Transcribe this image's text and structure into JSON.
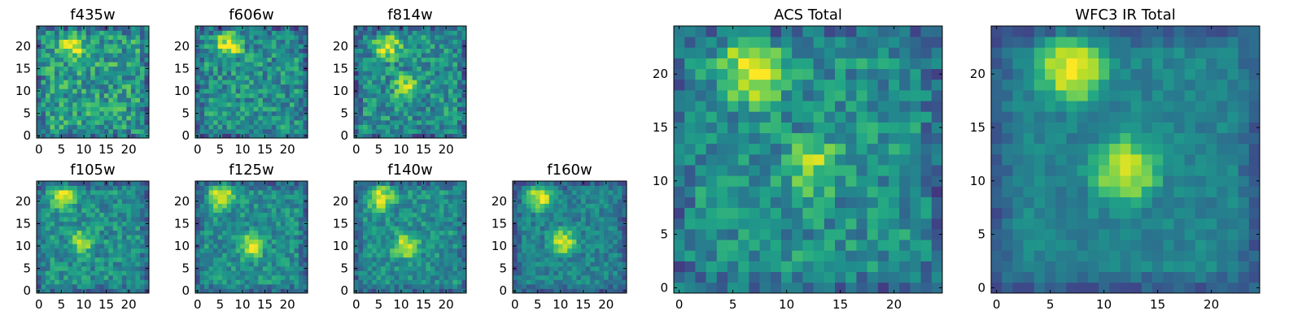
{
  "chart_data": [
    {
      "type": "heatmap",
      "title": "f435w",
      "xticks": [
        "0",
        "5",
        "10",
        "15",
        "20"
      ],
      "yticks": [
        "0",
        "5",
        "10",
        "15",
        "20"
      ],
      "xlim": [
        0,
        24
      ],
      "ylim": [
        0,
        24
      ],
      "colormap": "viridis",
      "grid": false,
      "blobs": [
        {
          "x": 7.5,
          "y": 20,
          "level": 0.95
        },
        {
          "x": 12,
          "y": 11,
          "level": 0.55
        }
      ],
      "background_level": 0.55,
      "noise": 0.22
    },
    {
      "type": "heatmap",
      "title": "f606w",
      "xticks": [
        "0",
        "5",
        "10",
        "15",
        "20"
      ],
      "yticks": [
        "0",
        "5",
        "10",
        "15",
        "20"
      ],
      "xlim": [
        0,
        24
      ],
      "ylim": [
        0,
        24
      ],
      "colormap": "viridis",
      "grid": false,
      "blobs": [
        {
          "x": 7,
          "y": 20.5,
          "level": 0.97
        },
        {
          "x": 12,
          "y": 11,
          "level": 0.55
        }
      ],
      "background_level": 0.5,
      "noise": 0.2
    },
    {
      "type": "heatmap",
      "title": "f814w",
      "xticks": [
        "0",
        "5",
        "10",
        "15",
        "20"
      ],
      "yticks": [
        "0",
        "5",
        "10",
        "15",
        "20"
      ],
      "xlim": [
        0,
        24
      ],
      "ylim": [
        0,
        24
      ],
      "colormap": "viridis",
      "grid": false,
      "blobs": [
        {
          "x": 7,
          "y": 20,
          "level": 0.95
        },
        {
          "x": 11,
          "y": 11,
          "level": 0.85
        }
      ],
      "background_level": 0.5,
      "noise": 0.2
    },
    {
      "type": "heatmap",
      "title": "f105w",
      "xticks": [
        "0",
        "5",
        "10",
        "15",
        "20"
      ],
      "yticks": [
        "0",
        "5",
        "10",
        "15",
        "20"
      ],
      "xlim": [
        0,
        24
      ],
      "ylim": [
        0,
        24
      ],
      "colormap": "viridis",
      "grid": false,
      "blobs": [
        {
          "x": 5.5,
          "y": 21,
          "level": 0.95
        },
        {
          "x": 9.5,
          "y": 11,
          "level": 0.85
        }
      ],
      "background_level": 0.5,
      "noise": 0.16
    },
    {
      "type": "heatmap",
      "title": "f125w",
      "xticks": [
        "0",
        "5",
        "10",
        "15",
        "20"
      ],
      "yticks": [
        "0",
        "5",
        "10",
        "15",
        "20"
      ],
      "xlim": [
        0,
        24
      ],
      "ylim": [
        0,
        24
      ],
      "colormap": "viridis",
      "grid": false,
      "blobs": [
        {
          "x": 5.5,
          "y": 21,
          "level": 0.95
        },
        {
          "x": 12,
          "y": 10,
          "level": 0.9
        }
      ],
      "background_level": 0.5,
      "noise": 0.15
    },
    {
      "type": "heatmap",
      "title": "f140w",
      "xticks": [
        "0",
        "5",
        "10",
        "15",
        "20"
      ],
      "yticks": [
        "0",
        "5",
        "10",
        "15",
        "20"
      ],
      "xlim": [
        0,
        24
      ],
      "ylim": [
        0,
        24
      ],
      "colormap": "viridis",
      "grid": false,
      "blobs": [
        {
          "x": 5.5,
          "y": 21,
          "level": 0.95
        },
        {
          "x": 11,
          "y": 10,
          "level": 0.9
        }
      ],
      "background_level": 0.5,
      "noise": 0.15
    },
    {
      "type": "heatmap",
      "title": "f160w",
      "xticks": [
        "0",
        "5",
        "10",
        "15",
        "20"
      ],
      "yticks": [
        "0",
        "5",
        "10",
        "15",
        "20"
      ],
      "xlim": [
        0,
        24
      ],
      "ylim": [
        0,
        24
      ],
      "colormap": "viridis",
      "grid": false,
      "blobs": [
        {
          "x": 5.5,
          "y": 21,
          "level": 0.95
        },
        {
          "x": 10.5,
          "y": 11,
          "level": 0.92
        }
      ],
      "background_level": 0.45,
      "noise": 0.13
    },
    {
      "type": "heatmap",
      "title": "ACS Total",
      "xticks": [
        "0",
        "5",
        "10",
        "15",
        "20"
      ],
      "yticks": [
        "0",
        "5",
        "10",
        "15",
        "20"
      ],
      "xlim": [
        0,
        24
      ],
      "ylim": [
        0,
        24
      ],
      "colormap": "viridis",
      "grid": false,
      "blobs": [
        {
          "x": 7,
          "y": 20.5,
          "level": 1.0
        },
        {
          "x": 12.5,
          "y": 11.5,
          "level": 0.8
        }
      ],
      "background_level": 0.5,
      "noise": 0.18
    },
    {
      "type": "heatmap",
      "title": "WFC3 IR Total",
      "xticks": [
        "0",
        "5",
        "10",
        "15",
        "20"
      ],
      "yticks": [
        "0",
        "5",
        "10",
        "15",
        "20"
      ],
      "xlim": [
        0,
        24
      ],
      "ylim": [
        0,
        24
      ],
      "colormap": "viridis",
      "grid": false,
      "blobs": [
        {
          "x": 7,
          "y": 20.5,
          "level": 1.0
        },
        {
          "x": 12,
          "y": 11,
          "level": 0.95
        }
      ],
      "background_level": 0.45,
      "noise": 0.08
    }
  ]
}
